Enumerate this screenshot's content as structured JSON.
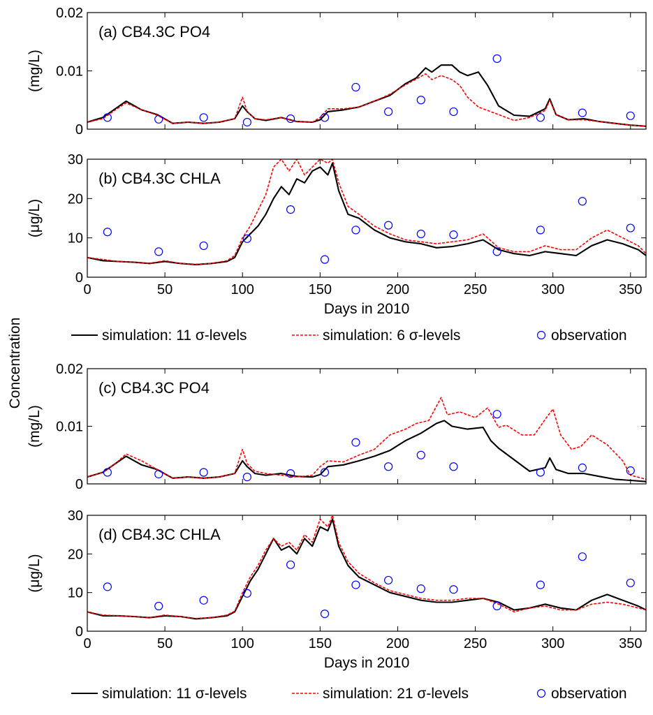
{
  "figure": {
    "shared_ylabel": "Concentration",
    "legends": [
      {
        "entries": [
          {
            "label": "simulation: 11  σ-levels",
            "style": "line",
            "color": "#000000"
          },
          {
            "label": "simulation: 6 σ-levels",
            "style": "dashed",
            "color": "#ff0000"
          },
          {
            "label": "observation",
            "style": "marker",
            "color": "#0000ff"
          }
        ]
      },
      {
        "entries": [
          {
            "label": "simulation: 11  σ-levels",
            "style": "line",
            "color": "#000000"
          },
          {
            "label": "simulation: 21 σ-levels",
            "style": "dashed",
            "color": "#ff0000"
          },
          {
            "label": "observation",
            "style": "marker",
            "color": "#0000ff"
          }
        ]
      }
    ]
  },
  "chart_data": [
    {
      "type": "line",
      "title": "(a) CB4.3C PO4",
      "xlabel": "",
      "ylabel": "(mg/L)",
      "xlim": [
        0,
        360
      ],
      "ylim": [
        0,
        0.02
      ],
      "xticks": [
        0,
        50,
        100,
        150,
        200,
        250,
        300,
        350
      ],
      "yticks": [
        0,
        0.01,
        0.02
      ],
      "ytick_labels": [
        "0",
        "0.01",
        "0.02"
      ],
      "xtick_labels_visible": false,
      "series": [
        {
          "name": "simulation: 11 σ-levels",
          "color": "#000000",
          "dashed": false,
          "x": [
            0,
            10,
            18,
            25,
            35,
            45,
            55,
            65,
            75,
            85,
            95,
            100,
            103,
            108,
            115,
            125,
            135,
            145,
            150,
            155,
            165,
            175,
            185,
            195,
            205,
            212,
            218,
            222,
            228,
            235,
            240,
            245,
            252,
            258,
            265,
            275,
            285,
            295,
            298,
            302,
            310,
            320,
            330,
            340,
            350,
            360
          ],
          "y": [
            0.0012,
            0.002,
            0.0035,
            0.0048,
            0.0033,
            0.0025,
            0.001,
            0.0012,
            0.001,
            0.0012,
            0.0018,
            0.004,
            0.003,
            0.0018,
            0.0015,
            0.002,
            0.0013,
            0.0012,
            0.0016,
            0.003,
            0.0033,
            0.0038,
            0.0048,
            0.0058,
            0.0078,
            0.0088,
            0.0105,
            0.0098,
            0.011,
            0.011,
            0.0098,
            0.0092,
            0.0098,
            0.0075,
            0.004,
            0.0024,
            0.0022,
            0.0035,
            0.0052,
            0.0025,
            0.0016,
            0.0018,
            0.0013,
            0.001,
            0.0007,
            0.0005
          ]
        },
        {
          "name": "simulation: 6 σ-levels",
          "color": "#ff0000",
          "dashed": true,
          "x": [
            0,
            10,
            18,
            25,
            35,
            45,
            55,
            65,
            75,
            85,
            95,
            100,
            103,
            108,
            115,
            125,
            135,
            145,
            150,
            155,
            165,
            175,
            185,
            195,
            205,
            212,
            218,
            222,
            228,
            235,
            240,
            245,
            252,
            258,
            265,
            275,
            285,
            295,
            298,
            302,
            310,
            320,
            330,
            340,
            350,
            360
          ],
          "y": [
            0.0012,
            0.0018,
            0.0033,
            0.0045,
            0.0033,
            0.0024,
            0.001,
            0.0012,
            0.001,
            0.0012,
            0.0018,
            0.0055,
            0.003,
            0.0018,
            0.0016,
            0.002,
            0.0013,
            0.0012,
            0.002,
            0.0035,
            0.0035,
            0.0038,
            0.0048,
            0.006,
            0.0076,
            0.0086,
            0.0095,
            0.0085,
            0.0092,
            0.0085,
            0.0075,
            0.0055,
            0.0038,
            0.0032,
            0.0025,
            0.0015,
            0.002,
            0.0032,
            0.005,
            0.0025,
            0.0016,
            0.0016,
            0.0013,
            0.001,
            0.0007,
            0.0005
          ]
        },
        {
          "name": "observation",
          "color": "#0000ff",
          "marker": "circle",
          "x": [
            13,
            46,
            75,
            103,
            131,
            153,
            173,
            194,
            215,
            236,
            264,
            292,
            319,
            350
          ],
          "y": [
            0.002,
            0.0017,
            0.002,
            0.0012,
            0.0018,
            0.002,
            0.0072,
            0.003,
            0.005,
            0.003,
            0.0121,
            0.002,
            0.0028,
            0.0023
          ]
        }
      ]
    },
    {
      "type": "line",
      "title": "(b) CB4.3C CHLA",
      "xlabel": "Days in 2010",
      "ylabel": "(μg/L)",
      "xlim": [
        0,
        360
      ],
      "ylim": [
        0,
        30
      ],
      "xticks": [
        0,
        50,
        100,
        150,
        200,
        250,
        300,
        350
      ],
      "yticks": [
        0,
        10,
        20,
        30
      ],
      "ytick_labels": [
        "0",
        "10",
        "20",
        "30"
      ],
      "xtick_labels_visible": true,
      "series": [
        {
          "name": "simulation: 11 σ-levels",
          "color": "#000000",
          "dashed": false,
          "x": [
            0,
            10,
            20,
            30,
            40,
            50,
            60,
            70,
            80,
            90,
            95,
            100,
            105,
            110,
            115,
            120,
            125,
            130,
            135,
            140,
            145,
            150,
            155,
            158,
            162,
            168,
            175,
            185,
            195,
            205,
            215,
            225,
            235,
            245,
            255,
            265,
            275,
            285,
            295,
            305,
            315,
            325,
            335,
            345,
            355,
            360
          ],
          "y": [
            5,
            4.2,
            4,
            3.8,
            3.5,
            4,
            3.5,
            3.2,
            3.5,
            4,
            5,
            9,
            11,
            13,
            16,
            20,
            23,
            21,
            25,
            24,
            27,
            28,
            26,
            29,
            22,
            16,
            15,
            12,
            10,
            9,
            8.5,
            7.5,
            7.8,
            8.5,
            9.5,
            7,
            6,
            5.5,
            6.5,
            6,
            5.5,
            8,
            9.5,
            8.5,
            7,
            5.5
          ]
        },
        {
          "name": "simulation: 6 σ-levels",
          "color": "#ff0000",
          "dashed": true,
          "x": [
            0,
            10,
            20,
            30,
            40,
            50,
            60,
            70,
            80,
            90,
            95,
            100,
            105,
            110,
            115,
            120,
            125,
            130,
            135,
            140,
            145,
            150,
            155,
            158,
            162,
            168,
            175,
            185,
            195,
            205,
            215,
            225,
            235,
            245,
            255,
            265,
            275,
            285,
            295,
            305,
            315,
            325,
            335,
            345,
            355,
            360
          ],
          "y": [
            5,
            4.5,
            4,
            3.8,
            3.5,
            4.2,
            3.5,
            3.3,
            3.5,
            4.2,
            5.5,
            10,
            13,
            17,
            21,
            28,
            30,
            27,
            30,
            26,
            28,
            30,
            29,
            30,
            24,
            18,
            16,
            13,
            11,
            9.5,
            9,
            8.5,
            9,
            9.5,
            11,
            7.5,
            6.5,
            6.5,
            8,
            7,
            7,
            10,
            12,
            10,
            8,
            6
          ]
        },
        {
          "name": "observation",
          "color": "#0000ff",
          "marker": "circle",
          "x": [
            13,
            46,
            75,
            103,
            131,
            153,
            173,
            194,
            215,
            236,
            264,
            292,
            319,
            350
          ],
          "y": [
            11.5,
            6.5,
            8,
            9.8,
            17.2,
            4.5,
            12,
            13.2,
            11,
            10.8,
            6.5,
            12,
            19.3,
            12.5
          ]
        }
      ]
    },
    {
      "type": "line",
      "title": "(c) CB4.3C PO4",
      "xlabel": "",
      "ylabel": "(mg/L)",
      "xlim": [
        0,
        360
      ],
      "ylim": [
        0,
        0.02
      ],
      "xticks": [
        0,
        50,
        100,
        150,
        200,
        250,
        300,
        350
      ],
      "yticks": [
        0,
        0.01,
        0.02
      ],
      "ytick_labels": [
        "0",
        "0.01",
        "0.02"
      ],
      "xtick_labels_visible": false,
      "series": [
        {
          "name": "simulation: 11 σ-levels",
          "color": "#000000",
          "dashed": false,
          "x": [
            0,
            10,
            18,
            25,
            35,
            45,
            55,
            65,
            75,
            85,
            95,
            100,
            103,
            108,
            115,
            125,
            135,
            145,
            150,
            155,
            165,
            175,
            185,
            195,
            205,
            215,
            225,
            230,
            235,
            245,
            255,
            260,
            265,
            275,
            285,
            295,
            298,
            302,
            310,
            320,
            330,
            340,
            350,
            360
          ],
          "y": [
            0.0012,
            0.002,
            0.0035,
            0.0048,
            0.0033,
            0.0025,
            0.001,
            0.0012,
            0.001,
            0.0012,
            0.0018,
            0.004,
            0.003,
            0.0018,
            0.0015,
            0.0018,
            0.0013,
            0.0012,
            0.0016,
            0.003,
            0.0033,
            0.004,
            0.0048,
            0.0058,
            0.0075,
            0.0088,
            0.0105,
            0.011,
            0.01,
            0.0095,
            0.0098,
            0.0075,
            0.0062,
            0.0042,
            0.0022,
            0.0028,
            0.0045,
            0.0025,
            0.0018,
            0.0018,
            0.0013,
            0.0008,
            0.0006,
            0.0004
          ]
        },
        {
          "name": "simulation: 21 σ-levels",
          "color": "#ff0000",
          "dashed": true,
          "x": [
            0,
            10,
            18,
            25,
            35,
            45,
            55,
            65,
            75,
            85,
            95,
            100,
            103,
            108,
            115,
            125,
            135,
            145,
            150,
            155,
            165,
            175,
            185,
            195,
            205,
            212,
            220,
            228,
            232,
            240,
            250,
            258,
            265,
            270,
            280,
            288,
            295,
            300,
            305,
            312,
            318,
            325,
            335,
            345,
            350,
            360
          ],
          "y": [
            0.0012,
            0.002,
            0.0035,
            0.0052,
            0.004,
            0.0025,
            0.001,
            0.0012,
            0.001,
            0.0012,
            0.0018,
            0.006,
            0.0035,
            0.0022,
            0.0018,
            0.0015,
            0.0012,
            0.0015,
            0.003,
            0.004,
            0.0038,
            0.005,
            0.006,
            0.0085,
            0.0095,
            0.0105,
            0.011,
            0.015,
            0.012,
            0.0125,
            0.0115,
            0.0132,
            0.0098,
            0.0102,
            0.0085,
            0.0085,
            0.0112,
            0.013,
            0.0085,
            0.006,
            0.0065,
            0.0085,
            0.0068,
            0.004,
            0.0015,
            0.0008
          ]
        },
        {
          "name": "observation",
          "color": "#0000ff",
          "marker": "circle",
          "x": [
            13,
            46,
            75,
            103,
            131,
            153,
            173,
            194,
            215,
            236,
            264,
            292,
            319,
            350
          ],
          "y": [
            0.002,
            0.0017,
            0.002,
            0.0012,
            0.0018,
            0.002,
            0.0072,
            0.003,
            0.005,
            0.003,
            0.0121,
            0.002,
            0.0028,
            0.0023
          ]
        }
      ]
    },
    {
      "type": "line",
      "title": "(d) CB4.3C CHLA",
      "xlabel": "Days in 2010",
      "ylabel": "(μg/L)",
      "xlim": [
        0,
        360
      ],
      "ylim": [
        0,
        30
      ],
      "xticks": [
        0,
        50,
        100,
        150,
        200,
        250,
        300,
        350
      ],
      "yticks": [
        0,
        10,
        20,
        30
      ],
      "ytick_labels": [
        "0",
        "10",
        "20",
        "30"
      ],
      "xtick_labels_visible": true,
      "series": [
        {
          "name": "simulation: 11 σ-levels",
          "color": "#000000",
          "dashed": false,
          "x": [
            0,
            10,
            20,
            30,
            40,
            50,
            60,
            70,
            80,
            90,
            95,
            100,
            105,
            110,
            115,
            120,
            125,
            130,
            135,
            140,
            145,
            150,
            155,
            158,
            162,
            168,
            175,
            185,
            195,
            205,
            215,
            225,
            235,
            245,
            255,
            265,
            275,
            285,
            295,
            305,
            315,
            325,
            335,
            345,
            355,
            360
          ],
          "y": [
            5,
            4,
            4,
            3.8,
            3.5,
            4,
            3.8,
            3.2,
            3.5,
            4,
            5,
            9,
            13,
            16,
            20,
            24,
            21,
            22,
            20,
            24,
            22,
            27,
            26,
            29,
            22,
            17,
            14,
            12,
            10,
            9,
            8,
            7.5,
            7.5,
            8,
            8.5,
            7.5,
            5.5,
            6,
            7,
            6,
            5.5,
            8,
            9.5,
            8,
            6.5,
            5.5
          ]
        },
        {
          "name": "simulation: 21 σ-levels",
          "color": "#ff0000",
          "dashed": true,
          "x": [
            0,
            10,
            20,
            30,
            40,
            50,
            60,
            70,
            80,
            90,
            95,
            100,
            105,
            110,
            115,
            120,
            125,
            130,
            135,
            140,
            145,
            150,
            155,
            158,
            162,
            168,
            175,
            185,
            195,
            205,
            215,
            225,
            235,
            245,
            255,
            265,
            275,
            285,
            295,
            305,
            315,
            325,
            335,
            345,
            355,
            360
          ],
          "y": [
            5,
            4.2,
            4,
            3.8,
            3.5,
            4.2,
            3.8,
            3.3,
            3.5,
            4.2,
            5.2,
            10,
            14,
            17,
            21,
            24,
            22,
            23,
            21,
            25,
            23,
            29,
            27,
            30,
            23,
            18,
            15,
            12.5,
            10.5,
            9.5,
            8.5,
            8,
            8,
            8.5,
            8.5,
            7,
            5,
            6,
            6.5,
            5.5,
            5.5,
            7,
            7.5,
            7,
            6,
            5.5
          ]
        },
        {
          "name": "observation",
          "color": "#0000ff",
          "marker": "circle",
          "x": [
            13,
            46,
            75,
            103,
            131,
            153,
            173,
            194,
            215,
            236,
            264,
            292,
            319,
            350
          ],
          "y": [
            11.5,
            6.5,
            8,
            9.8,
            17.2,
            4.5,
            12,
            13.2,
            11,
            10.8,
            6.5,
            12,
            19.3,
            12.5
          ]
        }
      ]
    }
  ]
}
